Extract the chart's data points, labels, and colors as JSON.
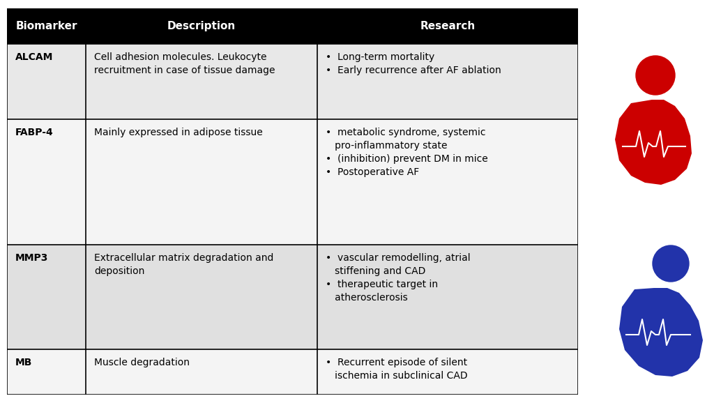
{
  "header": [
    "Biomarker",
    "Description",
    "Research"
  ],
  "rows": [
    {
      "biomarker": "ALCAM",
      "description": "Cell adhesion molecules. Leukocyte\nrecruitment in case of tissue damage",
      "research": "•  Long-term mortality\n•  Early recurrence after AF ablation"
    },
    {
      "biomarker": "FABP-4",
      "description": "Mainly expressed in adipose tissue",
      "research": "•  metabolic syndrome, systemic\n   pro-inflammatory state\n•  (inhibition) prevent DM in mice\n•  Postoperative AF"
    },
    {
      "biomarker": "MMP3",
      "description": "Extracellular matrix degradation and\ndeposition",
      "research": "•  vascular remodelling, atrial\n   stiffening and CAD\n•  therapeutic target in\n   atherosclerosis"
    },
    {
      "biomarker": "MB",
      "description": "Muscle degradation",
      "research": "•  Recurrent episode of silent\n   ischemia in subclinical CAD"
    }
  ],
  "header_bg": "#000000",
  "header_fg": "#ffffff",
  "border_color": "#000000",
  "text_color": "#000000",
  "fig_width": 10.24,
  "fig_height": 5.78,
  "red_color": "#cc0000",
  "blue_color": "#2233aa",
  "row_bg": [
    "#e8e8e8",
    "#f4f4f4",
    "#e0e0e0",
    "#f4f4f4"
  ]
}
